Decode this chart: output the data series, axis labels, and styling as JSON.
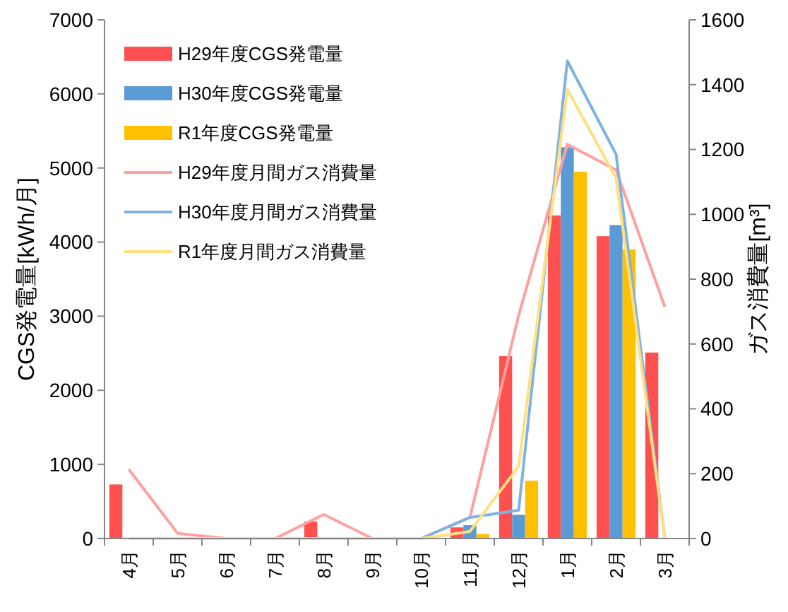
{
  "chart_data": {
    "type": "bar",
    "ylabel": "CGS発電量[kWh/月]",
    "y2label": "ガス消費量[m³]",
    "categories": [
      "4月",
      "5月",
      "6月",
      "7月",
      "8月",
      "9月",
      "10月",
      "11月",
      "12月",
      "1月",
      "2月",
      "3月"
    ],
    "series": [
      {
        "name": "H29年度CGS発電量",
        "color": "#ff5050",
        "values": [
          730,
          0,
          0,
          0,
          230,
          0,
          0,
          150,
          2460,
          4360,
          4080,
          2510
        ]
      },
      {
        "name": "H30年度CGS発電量",
        "color": "#5b9bd5",
        "values": [
          0,
          0,
          0,
          0,
          0,
          0,
          0,
          180,
          320,
          5280,
          4230,
          0
        ]
      },
      {
        "name": "R1年度CGS発電量",
        "color": "#ffc000",
        "values": [
          0,
          0,
          0,
          0,
          0,
          0,
          0,
          60,
          780,
          4950,
          3900,
          0
        ]
      },
      {
        "name": "H29年度月間ガス消費量",
        "type": "line",
        "axis": "y2",
        "color": "#ffa0a0",
        "values": [
          213,
          16,
          0,
          0,
          74,
          0,
          0,
          65,
          688,
          1216,
          1137,
          715
        ]
      },
      {
        "name": "H30年度月間ガス消費量",
        "type": "line",
        "axis": "y2",
        "color": "#7fb2e0",
        "values": [
          null,
          null,
          null,
          null,
          null,
          null,
          0,
          65,
          87,
          1473,
          1185,
          0
        ]
      },
      {
        "name": "R1年度月間ガス消費量",
        "type": "line",
        "axis": "y2",
        "color": "#ffe080",
        "values": [
          0,
          0,
          0,
          0,
          0,
          0,
          0,
          22,
          222,
          1386,
          1111,
          0
        ]
      }
    ],
    "ylim": [
      0,
      7000
    ],
    "yticks": [
      0,
      1000,
      2000,
      3000,
      4000,
      5000,
      6000,
      7000
    ],
    "y2lim": [
      0,
      1600
    ],
    "y2ticks": [
      0,
      200,
      400,
      600,
      800,
      1000,
      1200,
      1400,
      1600
    ],
    "legend": "top left",
    "grid": false
  }
}
